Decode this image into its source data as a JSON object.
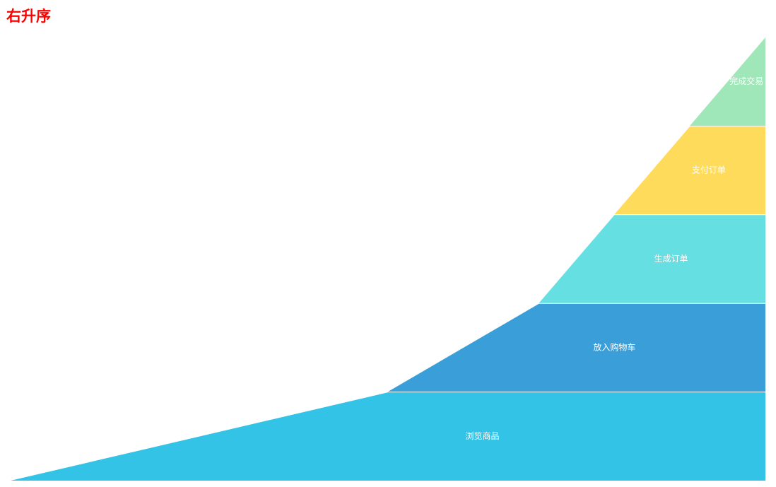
{
  "chart_data": {
    "type": "funnel",
    "title": "右升序",
    "title_color": "#ff0000",
    "sort": "ascending",
    "align": "right",
    "label_position": "inside",
    "categories": [
      "浏览商品",
      "放入购物车",
      "生成订单",
      "支付订单",
      "完成交易"
    ],
    "values": [
      100,
      50,
      30,
      20,
      10
    ],
    "colors": [
      "#32c3e6",
      "#3a9fd8",
      "#66dfe2",
      "#ffdb5c",
      "#9fe6b8"
    ]
  }
}
